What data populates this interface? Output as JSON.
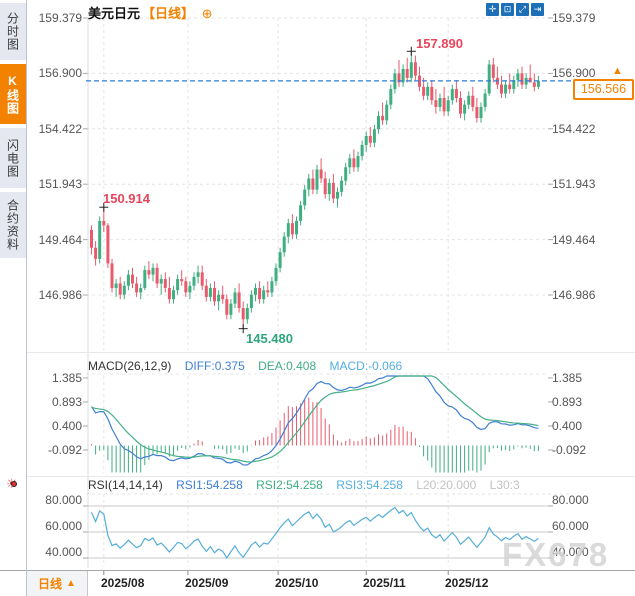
{
  "sidebar": {
    "tabs": [
      {
        "label": "分时图"
      },
      {
        "label": "K线图"
      },
      {
        "label": "闪电图"
      },
      {
        "label": "合约资料"
      }
    ],
    "active_index": 1
  },
  "header": {
    "symbol": "美元日元",
    "period_tag": "【日线】",
    "add_icon": "⊕"
  },
  "toolbar": {
    "icons": [
      {
        "name": "pan-tool",
        "glyph": "✛"
      },
      {
        "name": "zoom-window",
        "glyph": "⊡"
      },
      {
        "name": "zoom-scale",
        "glyph": "⤢"
      },
      {
        "name": "exit-chart",
        "glyph": "⇥"
      }
    ]
  },
  "bottom_bar": {
    "period": "日线",
    "arrow": "▲"
  },
  "watermark": "FX678",
  "chart_data": {
    "type": "candlestick",
    "title": "美元日元 日线",
    "price_axis_labels": [
      "159.379",
      "156.900",
      "154.422",
      "151.943",
      "149.464",
      "146.986"
    ],
    "x_axis_labels": [
      "2025/08",
      "2025/09",
      "2025/10",
      "2025/11",
      "2025/12"
    ],
    "last_price": 156.566,
    "last_price_label": "156.566",
    "annotations": {
      "early_high": "150.914",
      "high": "157.890",
      "low": "145.480"
    },
    "markers": [
      {
        "name": "early_high",
        "index": 3,
        "price": 150.914
      },
      {
        "name": "high",
        "index": 78,
        "price": 157.89
      },
      {
        "name": "low",
        "index": 37,
        "price": 145.48
      }
    ],
    "colors": {
      "up": "#3fae81",
      "down": "#e85b6c",
      "macd_diff": "#3f7fd4",
      "macd_dea": "#45b087",
      "rsi_line": "#56aed8",
      "price_line": "#2b7cd8",
      "accent_orange": "#f28200"
    },
    "candles": [
      [
        149.9,
        150.1,
        148.8,
        149.1
      ],
      [
        149.1,
        149.4,
        148.3,
        148.6
      ],
      [
        148.6,
        150.5,
        148.4,
        150.3
      ],
      [
        150.3,
        150.914,
        149.8,
        150.1
      ],
      [
        150.1,
        150.2,
        148.2,
        148.4
      ],
      [
        148.4,
        148.6,
        147.1,
        147.3
      ],
      [
        147.3,
        147.7,
        146.9,
        147.5
      ],
      [
        147.5,
        147.8,
        146.8,
        147.0
      ],
      [
        147.0,
        147.6,
        146.8,
        147.4
      ],
      [
        147.4,
        148.1,
        147.2,
        147.9
      ],
      [
        147.9,
        148.2,
        147.3,
        147.5
      ],
      [
        147.5,
        147.8,
        146.9,
        147.1
      ],
      [
        147.1,
        147.5,
        146.8,
        147.3
      ],
      [
        147.3,
        148.3,
        147.2,
        148.1
      ],
      [
        148.1,
        148.5,
        147.7,
        147.9
      ],
      [
        147.9,
        148.4,
        147.6,
        148.2
      ],
      [
        148.2,
        148.4,
        147.3,
        147.5
      ],
      [
        147.5,
        147.9,
        147.0,
        147.7
      ],
      [
        147.7,
        148.0,
        147.1,
        147.3
      ],
      [
        147.3,
        147.8,
        146.6,
        146.8
      ],
      [
        146.8,
        147.4,
        146.6,
        147.2
      ],
      [
        147.2,
        147.9,
        147.0,
        147.7
      ],
      [
        147.7,
        148.1,
        147.4,
        147.6
      ],
      [
        147.6,
        147.8,
        146.9,
        147.1
      ],
      [
        147.1,
        147.6,
        146.8,
        147.4
      ],
      [
        147.4,
        148.0,
        147.2,
        147.8
      ],
      [
        147.8,
        148.3,
        147.5,
        148.0
      ],
      [
        148.0,
        148.3,
        147.2,
        147.4
      ],
      [
        147.4,
        147.7,
        146.7,
        146.9
      ],
      [
        146.9,
        147.5,
        146.7,
        147.3
      ],
      [
        147.3,
        147.6,
        146.5,
        146.7
      ],
      [
        146.7,
        147.2,
        146.3,
        147.0
      ],
      [
        147.0,
        147.4,
        146.6,
        146.8
      ],
      [
        146.8,
        147.0,
        145.9,
        146.1
      ],
      [
        146.1,
        146.8,
        145.9,
        146.6
      ],
      [
        146.6,
        147.3,
        146.4,
        147.1
      ],
      [
        147.1,
        147.5,
        146.2,
        146.4
      ],
      [
        146.4,
        146.7,
        145.48,
        145.9
      ],
      [
        145.9,
        146.6,
        145.7,
        146.4
      ],
      [
        146.4,
        147.2,
        146.2,
        147.0
      ],
      [
        147.0,
        147.5,
        146.7,
        147.3
      ],
      [
        147.3,
        147.6,
        146.6,
        146.8
      ],
      [
        146.8,
        147.4,
        146.6,
        147.2
      ],
      [
        147.2,
        147.6,
        146.9,
        147.1
      ],
      [
        147.1,
        147.8,
        146.9,
        147.6
      ],
      [
        147.6,
        148.4,
        147.4,
        148.2
      ],
      [
        148.2,
        149.1,
        148.0,
        148.9
      ],
      [
        148.9,
        149.8,
        148.7,
        149.6
      ],
      [
        149.6,
        150.4,
        149.3,
        150.2
      ],
      [
        150.2,
        150.6,
        149.5,
        149.7
      ],
      [
        149.7,
        150.5,
        149.5,
        150.3
      ],
      [
        150.3,
        151.2,
        150.1,
        151.0
      ],
      [
        151.0,
        151.9,
        150.8,
        151.7
      ],
      [
        151.7,
        152.4,
        151.4,
        152.2
      ],
      [
        152.2,
        152.6,
        151.5,
        151.7
      ],
      [
        151.7,
        152.8,
        151.5,
        152.6
      ],
      [
        152.6,
        153.1,
        152.0,
        152.2
      ],
      [
        152.2,
        152.5,
        151.3,
        151.5
      ],
      [
        151.5,
        152.2,
        151.2,
        152.0
      ],
      [
        152.0,
        152.4,
        151.1,
        151.3
      ],
      [
        151.3,
        151.8,
        150.9,
        151.6
      ],
      [
        151.6,
        152.3,
        151.4,
        152.1
      ],
      [
        152.1,
        152.9,
        151.9,
        152.7
      ],
      [
        152.7,
        153.3,
        152.4,
        153.1
      ],
      [
        153.1,
        153.5,
        152.5,
        152.7
      ],
      [
        152.7,
        153.4,
        152.5,
        153.2
      ],
      [
        153.2,
        153.9,
        153.0,
        153.7
      ],
      [
        153.7,
        154.3,
        153.4,
        154.1
      ],
      [
        154.1,
        154.5,
        153.6,
        153.8
      ],
      [
        153.8,
        154.6,
        153.6,
        154.4
      ],
      [
        154.4,
        155.2,
        154.2,
        155.0
      ],
      [
        155.0,
        155.6,
        154.6,
        154.8
      ],
      [
        154.8,
        155.7,
        154.6,
        155.5
      ],
      [
        155.5,
        156.4,
        155.3,
        156.2
      ],
      [
        156.2,
        157.1,
        156.0,
        156.9
      ],
      [
        156.9,
        157.5,
        156.3,
        156.5
      ],
      [
        156.5,
        157.3,
        156.3,
        157.1
      ],
      [
        157.1,
        157.6,
        156.5,
        156.7
      ],
      [
        156.7,
        157.89,
        156.5,
        157.4
      ],
      [
        157.4,
        157.7,
        156.6,
        156.8
      ],
      [
        156.8,
        157.2,
        156.1,
        156.3
      ],
      [
        156.3,
        156.7,
        155.7,
        155.9
      ],
      [
        155.9,
        156.5,
        155.7,
        156.3
      ],
      [
        156.3,
        156.6,
        155.5,
        155.7
      ],
      [
        155.7,
        156.2,
        155.1,
        155.4
      ],
      [
        155.4,
        156.0,
        155.2,
        155.8
      ],
      [
        155.8,
        156.3,
        155.0,
        155.2
      ],
      [
        155.2,
        155.9,
        155.0,
        155.7
      ],
      [
        155.7,
        156.4,
        155.5,
        156.2
      ],
      [
        156.2,
        156.6,
        155.6,
        155.8
      ],
      [
        155.8,
        156.1,
        154.9,
        155.1
      ],
      [
        155.1,
        155.7,
        154.8,
        155.5
      ],
      [
        155.5,
        156.1,
        155.3,
        155.9
      ],
      [
        155.9,
        156.3,
        155.2,
        155.4
      ],
      [
        155.4,
        155.8,
        154.7,
        154.9
      ],
      [
        154.9,
        155.6,
        154.7,
        155.4
      ],
      [
        155.4,
        156.2,
        155.2,
        156.0
      ],
      [
        156.0,
        157.5,
        155.9,
        157.3
      ],
      [
        157.3,
        157.6,
        156.5,
        156.7
      ],
      [
        156.7,
        157.2,
        156.2,
        156.4
      ],
      [
        156.4,
        156.8,
        155.8,
        156.0
      ],
      [
        156.0,
        156.6,
        155.8,
        156.4
      ],
      [
        156.4,
        156.9,
        156.0,
        156.2
      ],
      [
        156.2,
        156.8,
        156.0,
        156.6
      ],
      [
        156.6,
        157.1,
        156.3,
        156.9
      ],
      [
        156.9,
        157.2,
        156.2,
        156.4
      ],
      [
        156.4,
        156.9,
        156.2,
        156.7
      ],
      [
        156.7,
        157.3,
        156.5,
        156.5
      ],
      [
        156.5,
        156.9,
        156.1,
        156.3
      ],
      [
        156.3,
        156.8,
        156.2,
        156.566
      ]
    ],
    "macd": {
      "label": "MACD(26,12,9)",
      "diff": "DIFF:0.375",
      "dea": "DEA:0.408",
      "macd": "MACD:-0.066",
      "axis_labels": [
        "1.385",
        "0.893",
        "0.400",
        "-0.092"
      ]
    },
    "rsi": {
      "label": "RSI(14,14,14)",
      "rsi1": "RSI1:54.258",
      "rsi2": "RSI2:54.258",
      "rsi3": "RSI3:54.258",
      "l20": "L20:20.000",
      "l30": "L30:3",
      "axis_labels": [
        "80.000",
        "60.000",
        "40.000"
      ]
    }
  }
}
